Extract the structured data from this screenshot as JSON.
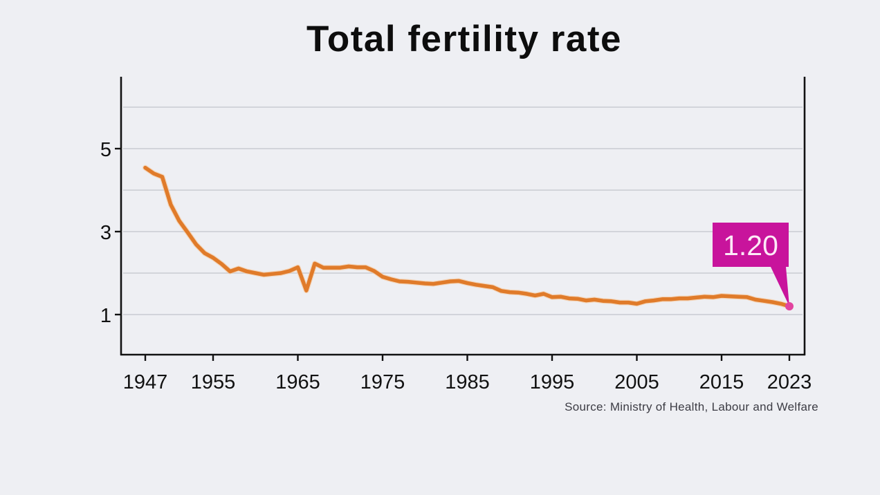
{
  "chart_data": {
    "type": "line",
    "title": "Total fertility rate",
    "xlabel": "",
    "ylabel": "",
    "source": "Source: Ministry of Health, Labour and Welfare",
    "x_ticks": [
      1947,
      1955,
      1965,
      1975,
      1985,
      1995,
      2005,
      2015,
      2023
    ],
    "y_ticks": [
      1,
      3,
      5
    ],
    "y_gridlines": [
      1,
      2,
      3,
      4,
      5,
      6
    ],
    "xlim": [
      1944,
      2026
    ],
    "ylim": [
      0,
      6.7
    ],
    "grid": true,
    "colors": {
      "line": "#e07b2a",
      "highlight": "#c8149c",
      "axis": "#111111",
      "grid": "#c9cbd2"
    },
    "callout": {
      "label": "1.20",
      "year": 2023,
      "value": 1.2
    },
    "series": [
      {
        "name": "Total fertility rate",
        "x": [
          1947,
          1948,
          1949,
          1950,
          1951,
          1952,
          1953,
          1954,
          1955,
          1956,
          1957,
          1958,
          1959,
          1960,
          1961,
          1962,
          1963,
          1964,
          1965,
          1966,
          1967,
          1968,
          1969,
          1970,
          1971,
          1972,
          1973,
          1974,
          1975,
          1976,
          1977,
          1978,
          1979,
          1980,
          1981,
          1982,
          1983,
          1984,
          1985,
          1986,
          1987,
          1988,
          1989,
          1990,
          1991,
          1992,
          1993,
          1994,
          1995,
          1996,
          1997,
          1998,
          1999,
          2000,
          2001,
          2002,
          2003,
          2004,
          2005,
          2006,
          2007,
          2008,
          2009,
          2010,
          2011,
          2012,
          2013,
          2014,
          2015,
          2016,
          2017,
          2018,
          2019,
          2020,
          2021,
          2022,
          2023
        ],
        "values": [
          4.54,
          4.4,
          4.32,
          3.65,
          3.26,
          2.98,
          2.69,
          2.48,
          2.37,
          2.22,
          2.04,
          2.11,
          2.04,
          2.0,
          1.96,
          1.98,
          2.0,
          2.05,
          2.14,
          1.58,
          2.23,
          2.13,
          2.13,
          2.13,
          2.16,
          2.14,
          2.14,
          2.05,
          1.91,
          1.85,
          1.8,
          1.79,
          1.77,
          1.75,
          1.74,
          1.77,
          1.8,
          1.81,
          1.76,
          1.72,
          1.69,
          1.66,
          1.57,
          1.54,
          1.53,
          1.5,
          1.46,
          1.5,
          1.42,
          1.43,
          1.39,
          1.38,
          1.34,
          1.36,
          1.33,
          1.32,
          1.29,
          1.29,
          1.26,
          1.32,
          1.34,
          1.37,
          1.37,
          1.39,
          1.39,
          1.41,
          1.43,
          1.42,
          1.45,
          1.44,
          1.43,
          1.42,
          1.36,
          1.33,
          1.3,
          1.26,
          1.2
        ]
      }
    ]
  }
}
